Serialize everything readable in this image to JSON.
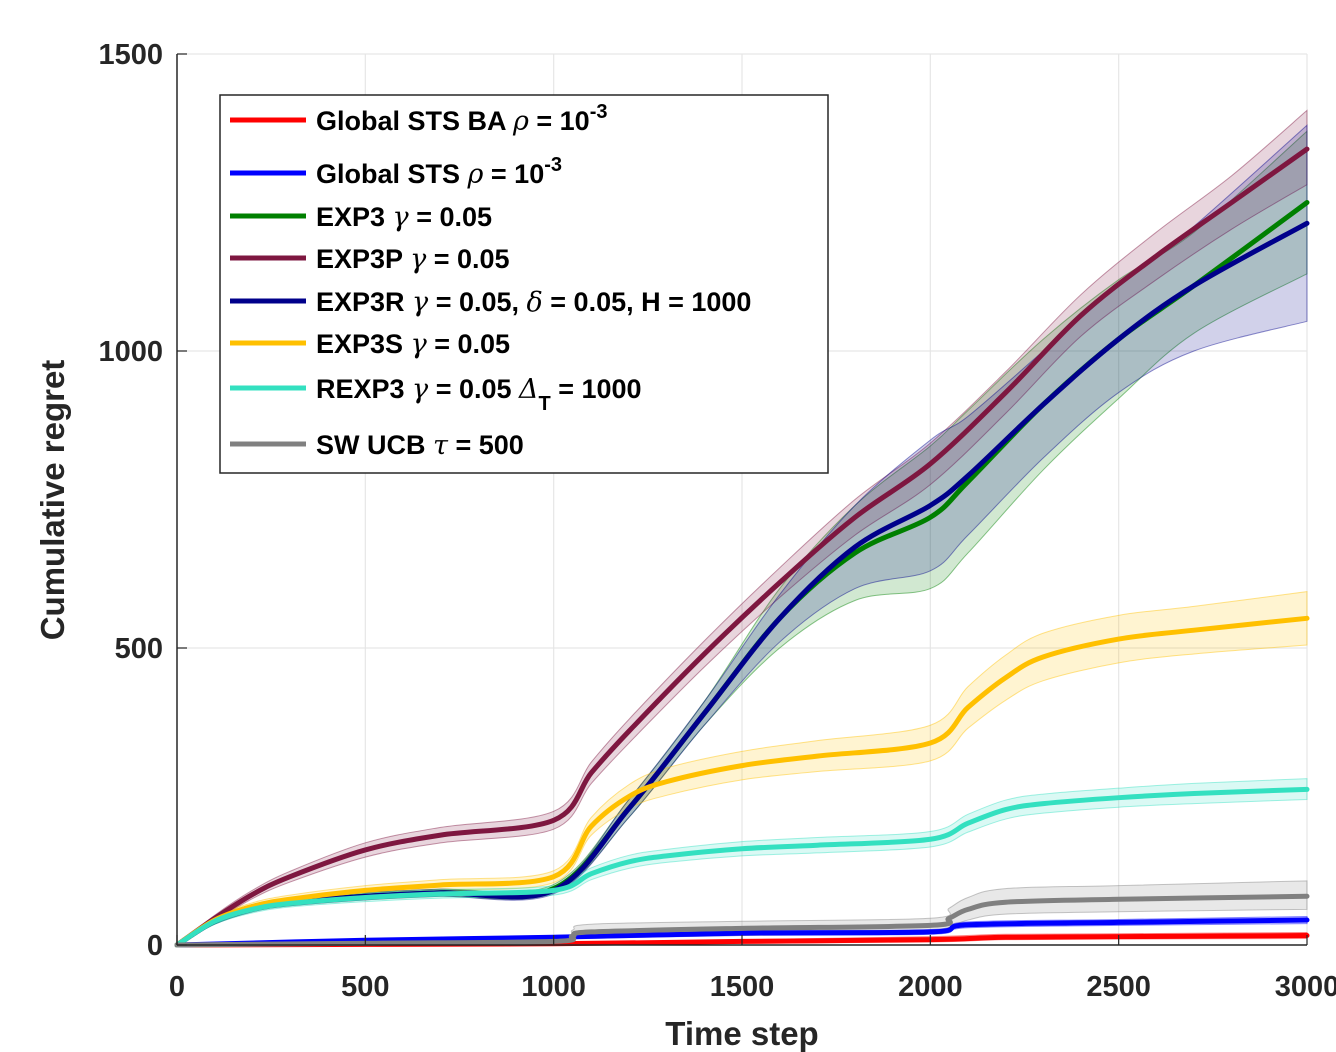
{
  "chart_data": {
    "type": "line",
    "title": "",
    "xlabel": "Time step",
    "ylabel": "Cumulative regret",
    "xlim": [
      0,
      3000
    ],
    "ylim": [
      0,
      1500
    ],
    "xticks": [
      0,
      500,
      1000,
      1500,
      2000,
      2500,
      3000
    ],
    "yticks": [
      0,
      500,
      1000,
      1500
    ],
    "xtick_labels": [
      "0",
      "500",
      "1000",
      "1500",
      "2000",
      "2500",
      "3000"
    ],
    "ytick_labels": [
      "0",
      "500",
      "1000",
      "1500"
    ],
    "grid": true,
    "legend_position": "top-left",
    "bands": "shaded mean ± deviation band around each series",
    "series": [
      {
        "name": "Global STS BA ρ = 10⁻³",
        "legend": {
          "base": "Global STS BA ",
          "sym": "ρ",
          "mid": " = 10",
          "sup": "-3"
        },
        "color": "#ff0000",
        "x": [
          0,
          500,
          1000,
          1500,
          2000,
          2200,
          2500,
          3000
        ],
        "y": [
          0,
          1,
          2,
          6,
          9,
          13,
          14,
          16
        ],
        "lower": [
          0,
          0,
          1,
          3,
          5,
          9,
          10,
          11
        ],
        "upper": [
          0,
          3,
          4,
          9,
          14,
          18,
          19,
          21
        ]
      },
      {
        "name": "Global STS ρ = 10⁻³",
        "legend": {
          "base": "Global STS ",
          "sym": "ρ",
          "mid": " = 10",
          "sup": "-3"
        },
        "color": "#0000ff",
        "x": [
          0,
          500,
          1000,
          1500,
          2000,
          2100,
          2500,
          3000
        ],
        "y": [
          0,
          8,
          13,
          20,
          22,
          34,
          38,
          42
        ],
        "lower": [
          0,
          6,
          10,
          16,
          18,
          29,
          33,
          36
        ],
        "upper": [
          0,
          10,
          16,
          24,
          26,
          39,
          43,
          48
        ]
      },
      {
        "name": "EXP3 γ = 0.05",
        "legend": {
          "base": "EXP3 ",
          "sym": "γ",
          "mid": " = 0.05"
        },
        "color": "#008000",
        "x": [
          0,
          100,
          200,
          300,
          500,
          700,
          1000,
          1200,
          1400,
          1600,
          1800,
          2000,
          2100,
          2300,
          2500,
          2700,
          3000
        ],
        "y": [
          0,
          40,
          62,
          72,
          82,
          88,
          95,
          230,
          390,
          550,
          660,
          720,
          780,
          910,
          1020,
          1110,
          1250
        ],
        "lower": [
          0,
          35,
          56,
          66,
          76,
          82,
          88,
          215,
          370,
          500,
          580,
          600,
          660,
          800,
          920,
          1030,
          1130
        ],
        "upper": [
          0,
          45,
          68,
          78,
          88,
          94,
          102,
          245,
          410,
          600,
          740,
          840,
          900,
          1020,
          1120,
          1200,
          1370
        ]
      },
      {
        "name": "EXP3P γ = 0.05",
        "legend": {
          "base": "EXP3P ",
          "sym": "γ",
          "mid": " = 0.05"
        },
        "color": "#7e1740",
        "x": [
          0,
          100,
          200,
          300,
          500,
          700,
          1000,
          1100,
          1200,
          1400,
          1600,
          1800,
          2000,
          2200,
          2400,
          2600,
          2800,
          3000
        ],
        "y": [
          0,
          45,
          85,
          115,
          160,
          185,
          210,
          290,
          360,
          490,
          610,
          720,
          810,
          930,
          1060,
          1160,
          1250,
          1340
        ],
        "lower": [
          0,
          40,
          78,
          106,
          148,
          172,
          195,
          272,
          340,
          468,
          585,
          690,
          775,
          895,
          1025,
          1120,
          1205,
          1280
        ],
        "upper": [
          0,
          50,
          92,
          124,
          172,
          198,
          225,
          308,
          380,
          512,
          635,
          750,
          845,
          965,
          1095,
          1200,
          1295,
          1405
        ]
      },
      {
        "name": "EXP3R γ = 0.05, δ = 0.05, H = 1000",
        "legend": {
          "base": "EXP3R ",
          "sym": "γ",
          "mid": " = 0.05, ",
          "sym2": "δ",
          "tail": " = 0.05, H = 1000"
        },
        "color": "#00008b",
        "x": [
          0,
          100,
          200,
          300,
          500,
          700,
          1000,
          1200,
          1400,
          1600,
          1800,
          2000,
          2100,
          2300,
          2500,
          2700,
          3000
        ],
        "y": [
          0,
          40,
          62,
          72,
          82,
          88,
          92,
          230,
          390,
          550,
          670,
          740,
          790,
          910,
          1020,
          1110,
          1215
        ],
        "lower": [
          0,
          35,
          56,
          66,
          76,
          82,
          86,
          215,
          370,
          510,
          600,
          630,
          690,
          820,
          930,
          1000,
          1050
        ],
        "upper": [
          0,
          45,
          68,
          78,
          88,
          94,
          98,
          245,
          410,
          590,
          740,
          850,
          890,
          1000,
          1110,
          1210,
          1380
        ]
      },
      {
        "name": "EXP3S γ = 0.05",
        "legend": {
          "base": "EXP3S ",
          "sym": "γ",
          "mid": " = 0.05"
        },
        "color": "#ffc000",
        "x": [
          0,
          100,
          200,
          300,
          500,
          700,
          1000,
          1100,
          1200,
          1300,
          1500,
          1700,
          2000,
          2100,
          2200,
          2300,
          2500,
          2700,
          3000
        ],
        "y": [
          0,
          42,
          65,
          77,
          92,
          101,
          115,
          200,
          250,
          275,
          302,
          318,
          340,
          400,
          450,
          485,
          515,
          530,
          550
        ],
        "lower": [
          0,
          37,
          59,
          70,
          84,
          92,
          105,
          185,
          230,
          252,
          278,
          292,
          310,
          365,
          412,
          445,
          475,
          490,
          505
        ],
        "upper": [
          0,
          47,
          71,
          84,
          100,
          110,
          125,
          215,
          270,
          298,
          326,
          344,
          370,
          435,
          488,
          525,
          555,
          570,
          595
        ]
      },
      {
        "name": "REXP3 γ = 0.05 Δ_T = 1000",
        "legend": {
          "base": "REXP3 ",
          "sym": "γ",
          "mid": " = 0.05 ",
          "delta": "Δ",
          "sub": "T",
          "tail": " = 1000"
        },
        "color": "#33e0c0",
        "x": [
          0,
          100,
          200,
          300,
          500,
          700,
          1000,
          1100,
          1200,
          1300,
          1500,
          1700,
          2000,
          2100,
          2200,
          2300,
          2500,
          2700,
          3000
        ],
        "y": [
          0,
          40,
          60,
          70,
          80,
          86,
          92,
          120,
          140,
          150,
          162,
          168,
          178,
          205,
          228,
          238,
          248,
          255,
          262
        ],
        "lower": [
          0,
          35,
          54,
          64,
          73,
          79,
          84,
          110,
          129,
          139,
          150,
          155,
          165,
          190,
          212,
          222,
          232,
          238,
          245
        ],
        "upper": [
          0,
          45,
          66,
          76,
          87,
          93,
          100,
          130,
          151,
          161,
          174,
          181,
          191,
          220,
          244,
          254,
          264,
          272,
          280
        ]
      },
      {
        "name": "SW UCB τ = 500",
        "legend": {
          "base": "SW UCB ",
          "sym": "τ",
          "mid": " = 500"
        },
        "color": "#808080",
        "x": [
          0,
          500,
          1000,
          1050,
          1100,
          1500,
          2000,
          2050,
          2100,
          2200,
          2500,
          3000
        ],
        "y": [
          0,
          3,
          6,
          15,
          22,
          28,
          33,
          45,
          60,
          72,
          77,
          82
        ],
        "lower": [
          0,
          1,
          2,
          8,
          12,
          16,
          20,
          30,
          42,
          52,
          56,
          60
        ],
        "upper": [
          0,
          5,
          10,
          25,
          35,
          40,
          45,
          62,
          80,
          95,
          100,
          108
        ]
      }
    ]
  }
}
